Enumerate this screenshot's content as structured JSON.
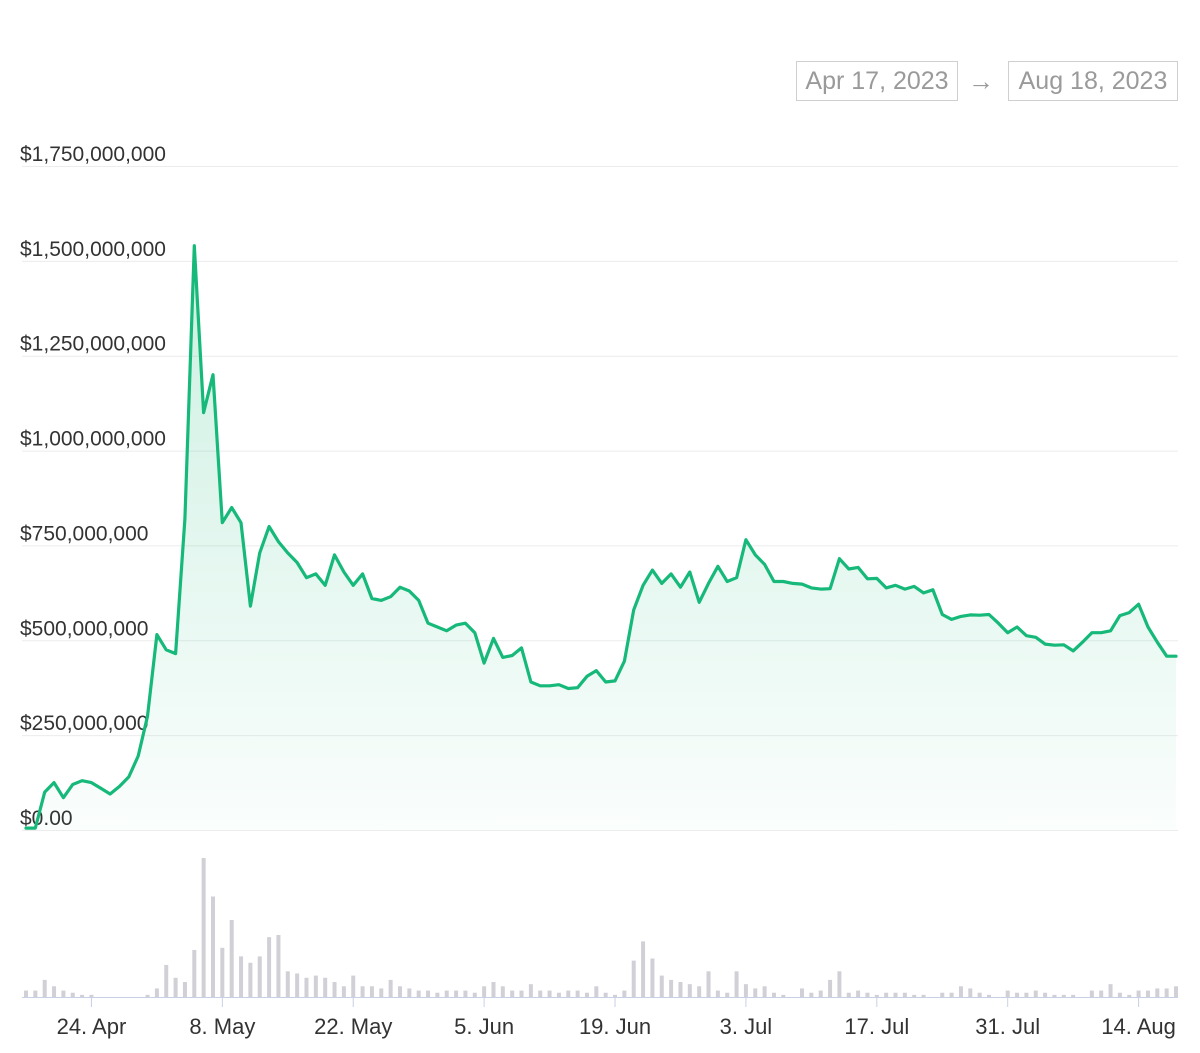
{
  "date_range": {
    "start": "Apr 17, 2023",
    "arrow": "→",
    "end": "Aug 18, 2023"
  },
  "colors": {
    "line": "#16b979",
    "area": "#16b979",
    "volume": "#d0d0d6",
    "grid": "#ececec"
  },
  "chart_data": {
    "type": "area",
    "ylim": [
      0,
      1750000000
    ],
    "y_ticks": [
      {
        "value": 0,
        "label": "$0.00"
      },
      {
        "value": 250000000,
        "label": "$250,000,000"
      },
      {
        "value": 500000000,
        "label": "$500,000,000"
      },
      {
        "value": 750000000,
        "label": "$750,000,000"
      },
      {
        "value": 1000000000,
        "label": "$1,000,000,000"
      },
      {
        "value": 1250000000,
        "label": "$1,250,000,000"
      },
      {
        "value": 1500000000,
        "label": "$1,500,000,000"
      },
      {
        "value": 1750000000,
        "label": "$1,750,000,000"
      }
    ],
    "x_ticks": [
      {
        "day": 7,
        "label": "24. Apr"
      },
      {
        "day": 21,
        "label": "8. May"
      },
      {
        "day": 35,
        "label": "22. May"
      },
      {
        "day": 49,
        "label": "5. Jun"
      },
      {
        "day": 63,
        "label": "19. Jun"
      },
      {
        "day": 77,
        "label": "3. Jul"
      },
      {
        "day": 91,
        "label": "17. Jul"
      },
      {
        "day": 105,
        "label": "31. Jul"
      },
      {
        "day": 119,
        "label": "14. Aug"
      }
    ],
    "x_range_days": [
      0,
      123
    ],
    "grid": true,
    "legend": "none",
    "x": [
      0,
      1,
      2,
      3,
      4,
      5,
      6,
      7,
      8,
      9,
      10,
      11,
      12,
      13,
      14,
      15,
      16,
      17,
      18,
      19,
      20,
      21,
      22,
      23,
      24,
      25,
      26,
      27,
      28,
      29,
      30,
      31,
      32,
      33,
      34,
      35,
      36,
      37,
      38,
      39,
      40,
      41,
      42,
      43,
      44,
      45,
      46,
      47,
      48,
      49,
      50,
      51,
      52,
      53,
      54,
      55,
      56,
      57,
      58,
      59,
      60,
      61,
      62,
      63,
      64,
      65,
      66,
      67,
      68,
      69,
      70,
      71,
      72,
      73,
      74,
      75,
      76,
      77,
      78,
      79,
      80,
      81,
      82,
      83,
      84,
      85,
      86,
      87,
      88,
      89,
      90,
      91,
      92,
      93,
      94,
      95,
      96,
      97,
      98,
      99,
      100,
      101,
      102,
      103,
      104,
      105,
      106,
      107,
      108,
      109,
      110,
      111,
      112,
      113,
      114,
      115,
      116,
      117,
      118,
      119,
      120,
      121,
      122,
      123
    ],
    "values": [
      5000000,
      5000000,
      100000000,
      125000000,
      85000000,
      120000000,
      130000000,
      125000000,
      110000000,
      95000000,
      115000000,
      140000000,
      195000000,
      300000000,
      515000000,
      475000000,
      465000000,
      820000000,
      1540000000,
      1100000000,
      1200000000,
      810000000,
      850000000,
      810000000,
      590000000,
      730000000,
      800000000,
      760000000,
      730000000,
      705000000,
      665000000,
      675000000,
      645000000,
      725000000,
      680000000,
      645000000,
      675000000,
      610000000,
      605000000,
      615000000,
      640000000,
      630000000,
      605000000,
      545000000,
      535000000,
      525000000,
      540000000,
      545000000,
      520000000,
      440000000,
      505000000,
      455000000,
      460000000,
      480000000,
      390000000,
      380000000,
      380000000,
      383000000,
      373000000,
      375000000,
      405000000,
      420000000,
      390000000,
      393000000,
      445000000,
      580000000,
      645000000,
      685000000,
      650000000,
      675000000,
      640000000,
      680000000,
      600000000,
      650000000,
      695000000,
      655000000,
      665000000,
      765000000,
      725000000,
      700000000,
      655000000,
      655000000,
      650000000,
      648000000,
      638000000,
      635000000,
      636000000,
      715000000,
      688000000,
      692000000,
      662000000,
      663000000,
      638000000,
      645000000,
      635000000,
      642000000,
      625000000,
      633000000,
      568000000,
      555000000,
      563000000,
      567000000,
      566000000,
      568000000,
      545000000,
      520000000,
      535000000,
      512000000,
      508000000,
      490000000,
      487000000,
      488000000,
      472000000,
      495000000,
      520000000,
      520000000,
      525000000,
      565000000,
      573000000,
      595000000,
      535000000,
      495000000,
      458000000,
      458000000
    ],
    "volume": [
      3,
      3,
      8,
      5,
      3,
      2,
      1,
      1,
      0,
      0,
      0,
      0,
      0,
      1,
      4,
      15,
      9,
      7,
      22,
      65,
      47,
      23,
      36,
      19,
      16,
      19,
      28,
      29,
      12,
      11,
      9,
      10,
      9,
      7,
      5,
      10,
      5,
      5,
      4,
      8,
      5,
      4,
      3,
      3,
      2,
      3,
      3,
      3,
      2,
      5,
      7,
      5,
      3,
      3,
      6,
      3,
      3,
      2,
      3,
      3,
      2,
      5,
      2,
      1,
      3,
      17,
      26,
      18,
      10,
      8,
      7,
      6,
      5,
      12,
      3,
      2,
      12,
      6,
      4,
      5,
      2,
      1,
      0,
      4,
      2,
      3,
      8,
      12,
      2,
      3,
      2,
      1,
      2,
      2,
      2,
      1,
      1,
      0,
      2,
      2,
      5,
      4,
      2,
      1,
      0,
      3,
      2,
      2,
      3,
      2,
      1,
      1,
      1,
      0,
      3,
      3,
      6,
      2,
      1,
      3,
      3,
      4,
      4,
      5
    ]
  }
}
